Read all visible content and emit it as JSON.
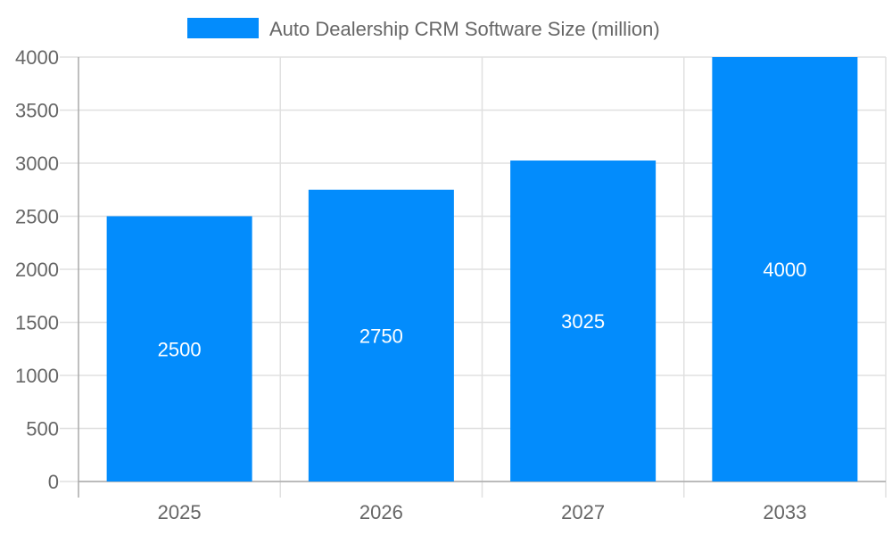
{
  "chart_data": {
    "type": "bar",
    "categories": [
      "2025",
      "2026",
      "2027",
      "2033"
    ],
    "series": [
      {
        "name": "Auto Dealership CRM Software Size (million)",
        "values": [
          2500,
          2750,
          3025,
          4000
        ],
        "color": "#038cfc"
      }
    ],
    "data_labels": [
      "2500",
      "2750",
      "3025",
      "4000"
    ],
    "ylim": [
      0,
      4000
    ],
    "yticks": [
      "0",
      "500",
      "1000",
      "1500",
      "2000",
      "2500",
      "3000",
      "3500",
      "4000"
    ],
    "grid": true,
    "legend": "top-center",
    "xlabel": "",
    "ylabel": ""
  }
}
